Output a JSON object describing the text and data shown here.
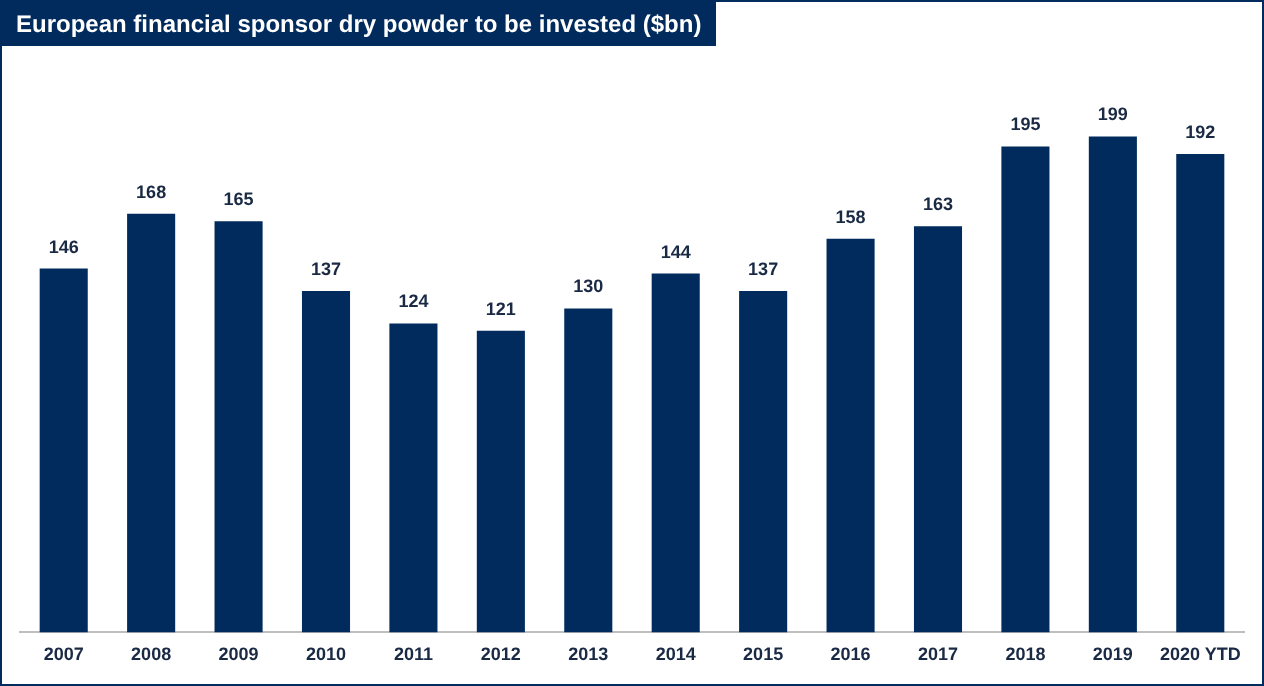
{
  "chart_data": {
    "type": "bar",
    "title": "European financial sponsor dry powder to be invested ($bn)",
    "categories": [
      "2007",
      "2008",
      "2009",
      "2010",
      "2011",
      "2012",
      "2013",
      "2014",
      "2015",
      "2016",
      "2017",
      "2018",
      "2019",
      "2020 YTD"
    ],
    "values": [
      146,
      168,
      165,
      137,
      124,
      121,
      130,
      144,
      137,
      158,
      163,
      195,
      199,
      192
    ],
    "color": "#002b5c",
    "data_labels": true,
    "grid": false,
    "legend": false
  }
}
